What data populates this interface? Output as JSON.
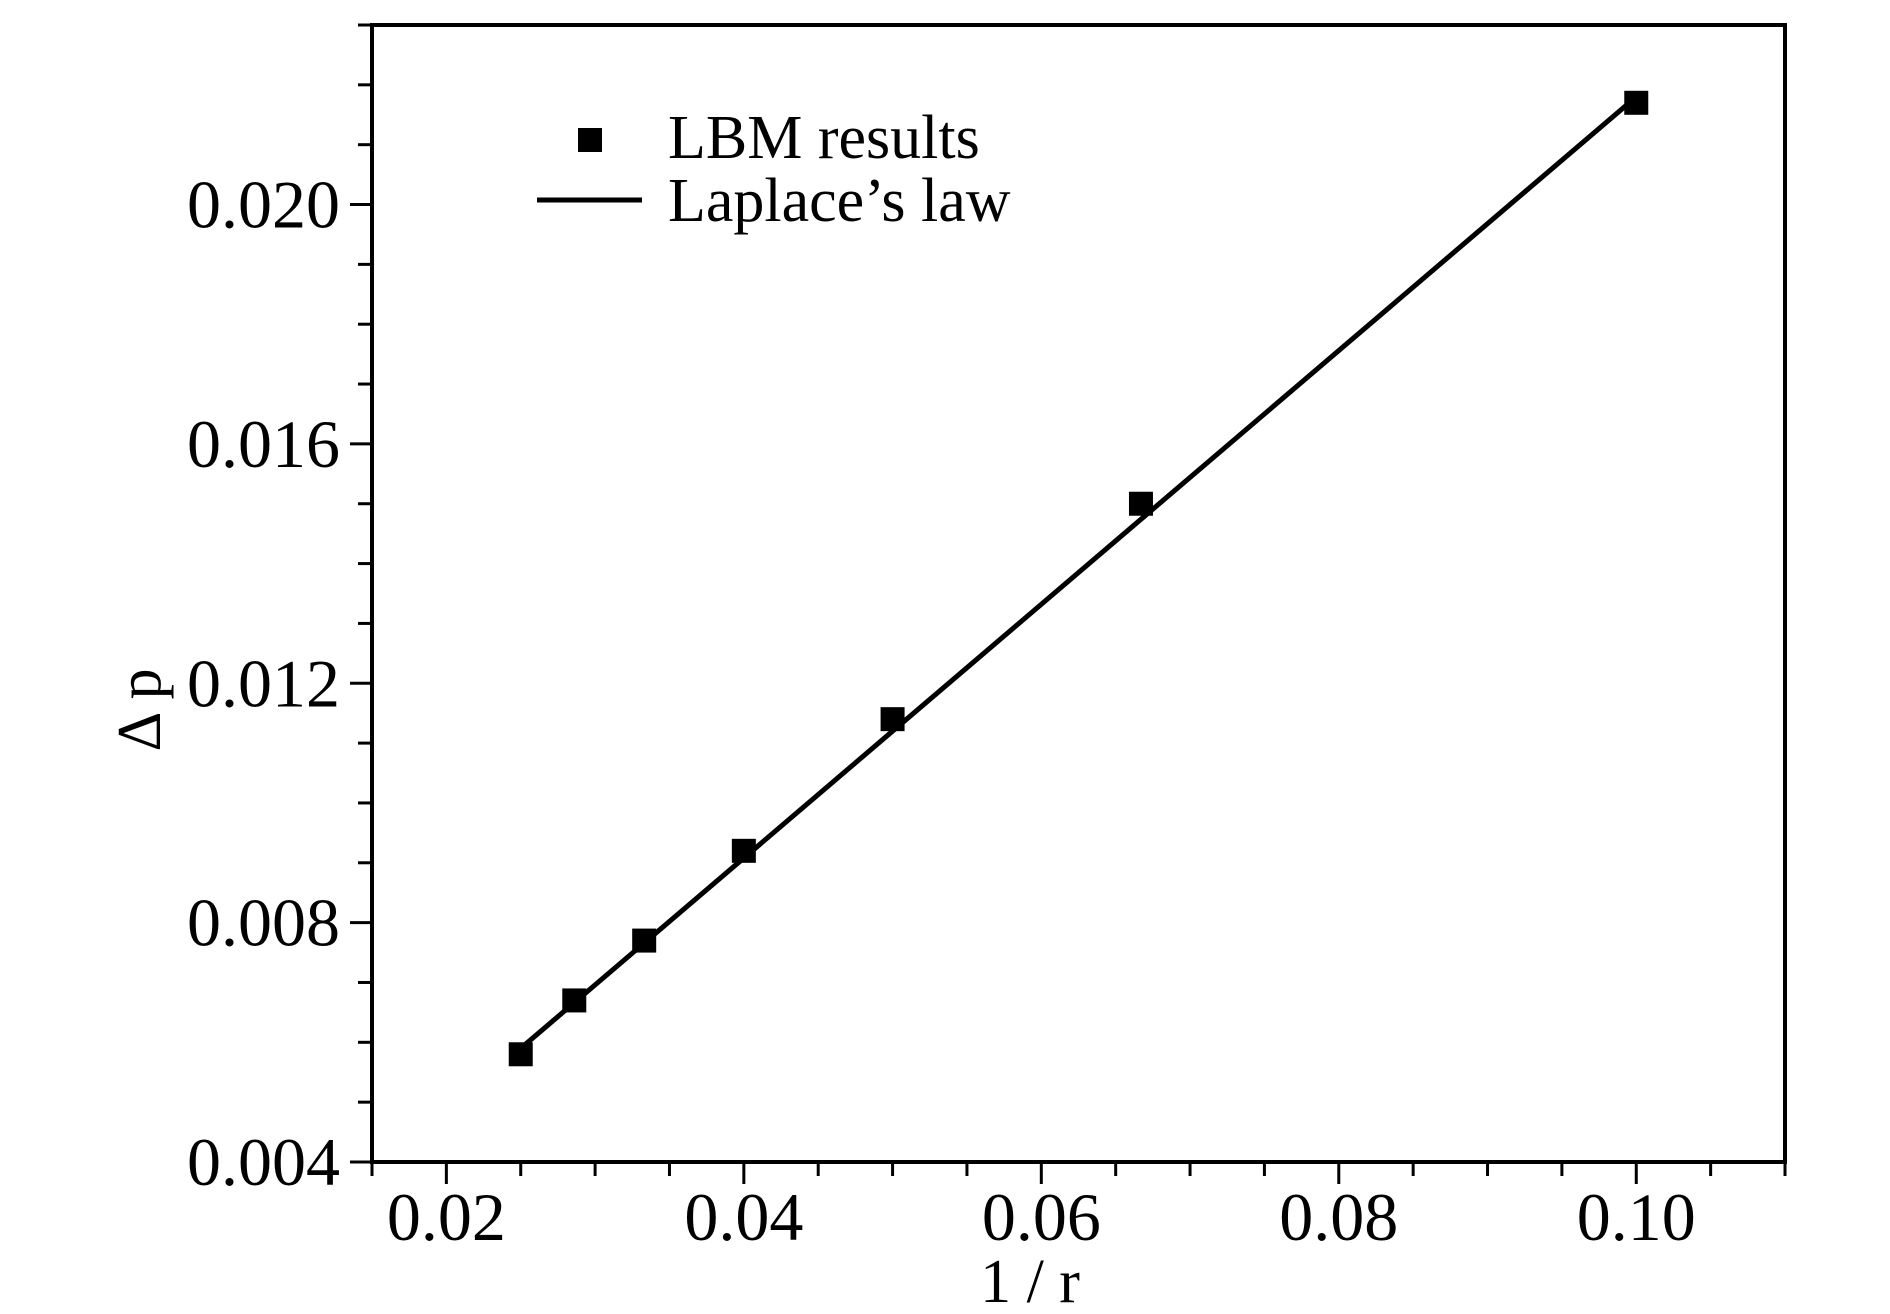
{
  "chart_data": {
    "type": "scatter",
    "xlabel": "1 / r",
    "ylabel": "Δ p",
    "xlim": [
      0.015,
      0.11
    ],
    "ylim": [
      0.004,
      0.023
    ],
    "xticks": [
      "0.02",
      "0.04",
      "0.06",
      "0.08",
      "0.10"
    ],
    "yticks": [
      "0.004",
      "0.008",
      "0.012",
      "0.016",
      "0.020"
    ],
    "grid": false,
    "legend_position": "top-left",
    "series": [
      {
        "name": "LBM results",
        "marker": "square",
        "x": [
          0.025,
          0.0286,
          0.0333,
          0.04,
          0.05,
          0.0667,
          0.1
        ],
        "y": [
          0.0058,
          0.0067,
          0.0077,
          0.0092,
          0.0114,
          0.015,
          0.0217
        ]
      },
      {
        "name": "Laplace’s law",
        "style": "line",
        "x": [
          0.025,
          0.1
        ],
        "y": [
          0.0059,
          0.0218
        ]
      }
    ],
    "colors": {
      "markers": "#000000",
      "line": "#000000",
      "axes": "#000000"
    }
  }
}
